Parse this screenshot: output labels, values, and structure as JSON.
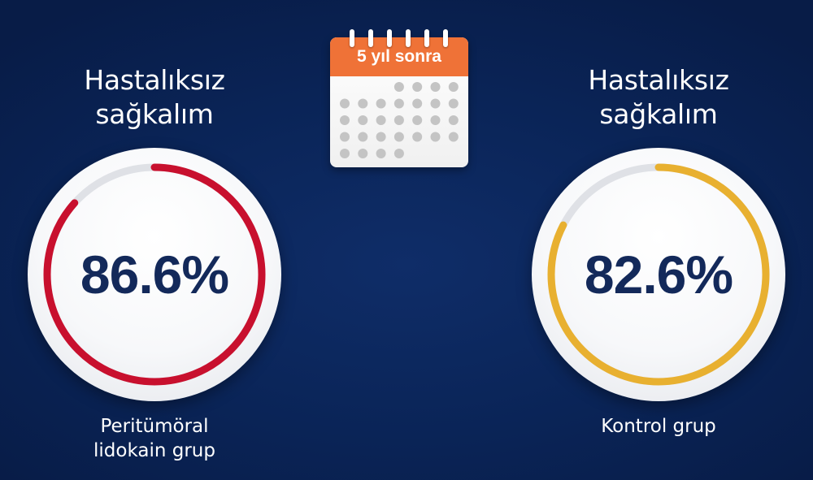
{
  "calendar": {
    "label": "5 yıl sonra",
    "header_color": "#ef7237"
  },
  "panels": [
    {
      "heading_line1": "Hastalıksız",
      "heading_line2": "sağkalım",
      "value_text": "86.6%",
      "value": 86.6,
      "ring_color": "#c8102e",
      "caption_line1": "Peritümöral",
      "caption_line2": "lidokain grup"
    },
    {
      "heading_line1": "Hastalıksız",
      "heading_line2": "sağkalım",
      "value_text": "82.6%",
      "value": 82.6,
      "ring_color": "#e8b030",
      "caption_line1": "Kontrol grup",
      "caption_line2": ""
    }
  ]
}
